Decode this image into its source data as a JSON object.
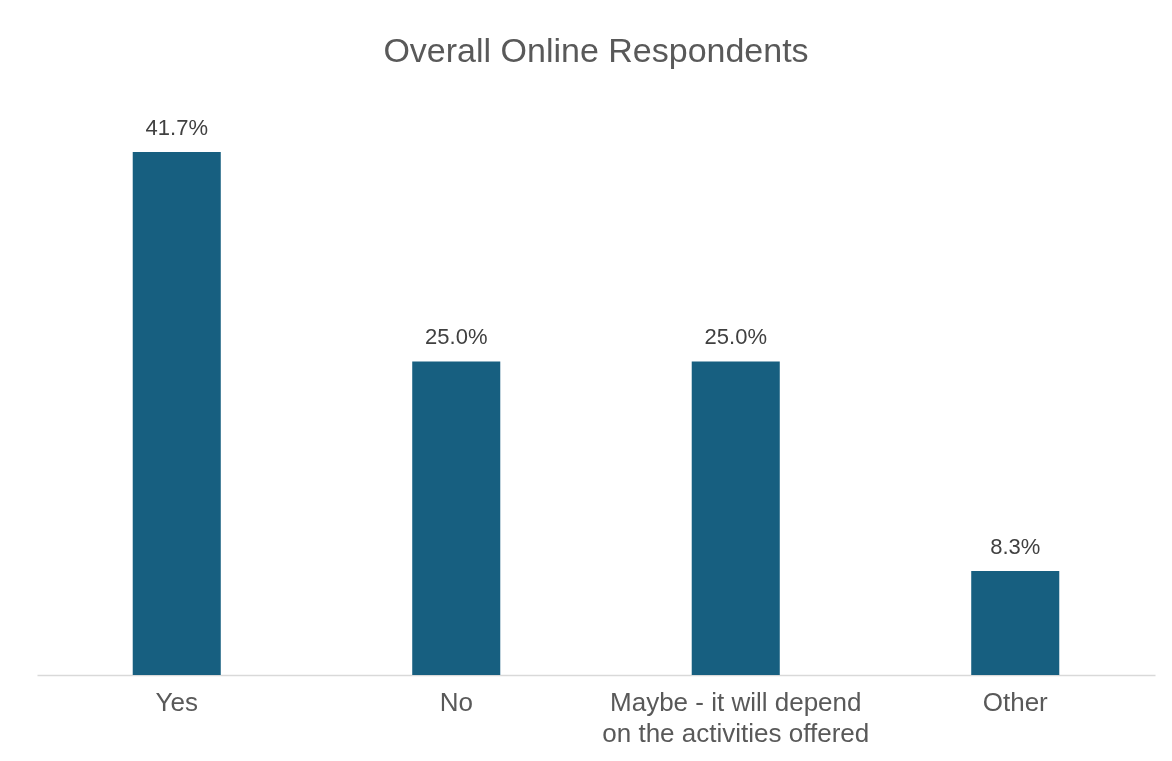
{
  "chart_data": {
    "type": "bar",
    "title": "Overall Online Respondents",
    "categories": [
      "Yes",
      "No",
      "Maybe - it will depend on the activities offered",
      "Other"
    ],
    "values": [
      41.7,
      25.0,
      25.0,
      8.3
    ],
    "value_labels": [
      "41.7%",
      "25.0%",
      "25.0%",
      "8.3%"
    ],
    "color": "#175f80"
  }
}
